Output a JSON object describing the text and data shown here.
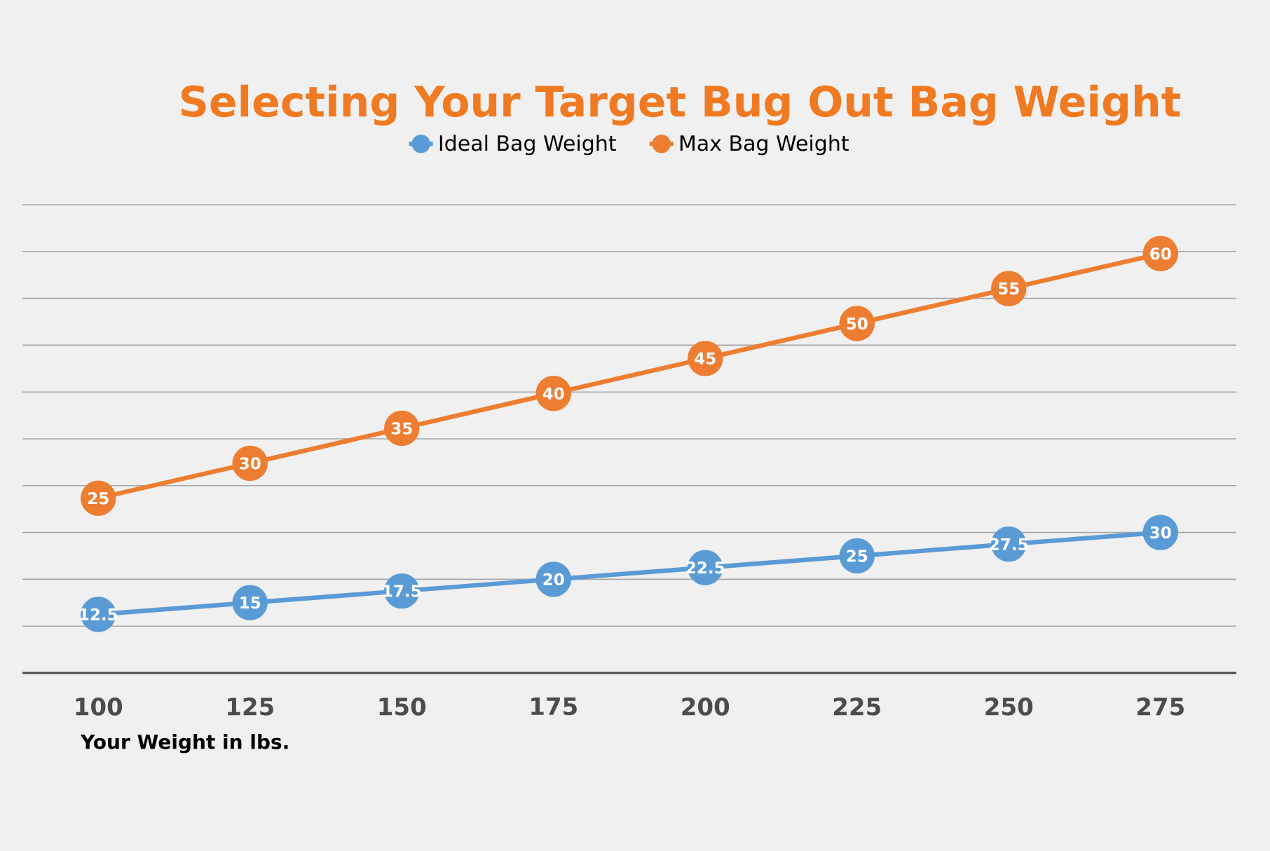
{
  "chart_data": {
    "type": "line",
    "title": "Selecting Your Target Bug Out Bag Weight",
    "xlabel": "Your Weight in lbs.",
    "categories": [
      "100",
      "125",
      "150",
      "175",
      "200",
      "225",
      "250",
      "275"
    ],
    "series": [
      {
        "name": "Ideal Bag Weight",
        "color": "#5b9bd5",
        "values": [
          12.5,
          15,
          17.5,
          20,
          22.5,
          25,
          27.5,
          30
        ]
      },
      {
        "name": "Max Bag Weight",
        "color": "#ed7d31",
        "axis": "y2",
        "values": [
          25,
          30,
          35,
          40,
          45,
          50,
          55,
          60
        ]
      }
    ],
    "ylim": [
      0,
      100
    ],
    "yticks": [
      {
        "value": 0,
        "label": null
      },
      {
        "value": 10,
        "label": null
      },
      {
        "value": 20,
        "label": null
      },
      {
        "value": 30,
        "label": null
      },
      {
        "value": 40,
        "label": null
      },
      {
        "value": 50,
        "label": null
      },
      {
        "value": 60,
        "label": null
      },
      {
        "value": 70,
        "label": null
      },
      {
        "value": 80,
        "label": null
      },
      {
        "value": 90,
        "label": null
      },
      {
        "value": 100,
        "label": null
      }
    ],
    "y2lim": [
      0,
      67
    ],
    "grid": "y",
    "legend": "top",
    "marker": "circle",
    "line_style": "solid",
    "data_labels": true,
    "tick_labels": "x"
  }
}
